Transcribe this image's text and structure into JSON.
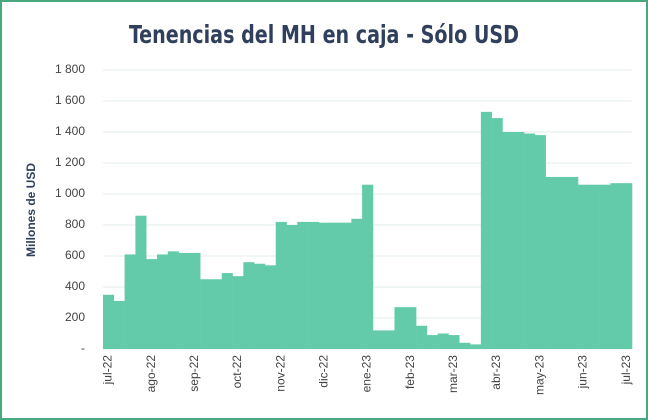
{
  "chart_data": {
    "type": "bar",
    "title": "Tenencias del MH en caja - Sólo USD",
    "y_label": "Millones de USD",
    "categories": [
      "jul-22",
      null,
      null,
      null,
      "ago-22",
      null,
      null,
      null,
      "sep-22",
      null,
      null,
      null,
      "oct-22",
      null,
      null,
      null,
      "nov-22",
      null,
      null,
      null,
      "dic-22",
      null,
      null,
      null,
      "ene-23",
      null,
      null,
      null,
      "feb-23",
      null,
      null,
      null,
      "mar-23",
      null,
      null,
      null,
      "abr-23",
      null,
      null,
      null,
      "may-23",
      null,
      null,
      null,
      "jun-23",
      null,
      null,
      null,
      "jul-23"
    ],
    "values": [
      350,
      310,
      610,
      860,
      580,
      610,
      630,
      620,
      620,
      450,
      450,
      490,
      470,
      560,
      550,
      540,
      820,
      800,
      820,
      820,
      815,
      815,
      815,
      840,
      1060,
      120,
      120,
      270,
      270,
      150,
      90,
      100,
      90,
      40,
      30,
      1530,
      1490,
      1400,
      1400,
      1390,
      1380,
      1110,
      1110,
      1110,
      1060,
      1060,
      1060,
      1070,
      1070
    ],
    "color": "#64cbaa",
    "ylim": [
      0,
      1800
    ],
    "yticks": [
      {
        "value": 0,
        "label": "-"
      },
      200,
      400,
      600,
      800,
      {
        "value": 1000,
        "label": "1 000"
      },
      {
        "value": 1200,
        "label": "1 200"
      },
      {
        "value": 1400,
        "label": "1 400"
      },
      {
        "value": 1600,
        "label": "1 600"
      },
      {
        "value": 1800,
        "label": "1 800"
      }
    ],
    "grid": true
  }
}
